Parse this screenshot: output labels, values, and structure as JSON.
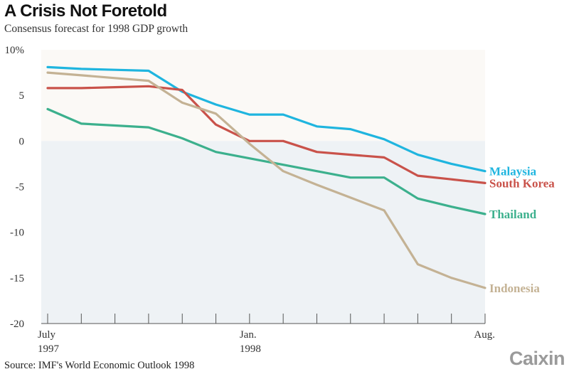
{
  "title": "A Crisis Not Foretold",
  "subtitle": "Consensus forecast for 1998 GDP growth",
  "source": "Source: IMF's World Economic Outlook 1998",
  "logo": "Caixin",
  "chart_data": {
    "type": "line",
    "title": "A Crisis Not Foretold",
    "subtitle": "Consensus forecast for 1998 GDP growth",
    "ylim": [
      -20,
      10
    ],
    "yticks": [
      10,
      5,
      0,
      -5,
      -10,
      -15,
      -20
    ],
    "ytick_labels": [
      "10%",
      "5",
      "0",
      "-5",
      "-10",
      "-15",
      "-20"
    ],
    "x_month_index": [
      0,
      1,
      2,
      3,
      4,
      5,
      6,
      7,
      8,
      9,
      10,
      11,
      12,
      13
    ],
    "xtick_labels": [
      {
        "x": 0,
        "line1": "July",
        "line2": "1997"
      },
      {
        "x": 6,
        "line1": "Jan.",
        "line2": "1998"
      },
      {
        "x": 13,
        "line1": "Aug.",
        "line2": ""
      }
    ],
    "grid": false,
    "legend": "direct labels at line ends",
    "colors": {
      "positive_band": "#fbf9f6",
      "negative_band": "#eef2f5",
      "axis": "#555555"
    },
    "series": [
      {
        "name": "Malaysia",
        "color": "#1fb5df",
        "x": [
          0,
          1,
          2,
          3,
          4,
          5,
          6,
          7,
          8,
          9,
          10,
          11,
          12,
          13
        ],
        "values": [
          8.1,
          7.9,
          7.8,
          7.7,
          5.4,
          4.0,
          2.9,
          2.9,
          1.6,
          1.3,
          0.2,
          -1.5,
          -2.5,
          -3.3
        ]
      },
      {
        "name": "South Korea",
        "color": "#c9524a",
        "x": [
          0,
          1,
          2,
          3,
          4,
          5,
          6,
          7,
          8,
          9,
          10,
          11,
          12,
          13
        ],
        "values": [
          5.8,
          5.8,
          5.9,
          6.0,
          5.6,
          1.8,
          0.0,
          0.0,
          -1.2,
          -1.5,
          -1.8,
          -3.8,
          -4.2,
          -4.6
        ]
      },
      {
        "name": "Thailand",
        "color": "#3cb08d",
        "x": [
          0,
          1,
          2,
          3,
          4,
          5,
          6,
          7,
          8,
          9,
          10,
          11,
          12,
          13
        ],
        "values": [
          3.5,
          1.9,
          1.7,
          1.5,
          0.3,
          -1.2,
          -1.9,
          -2.6,
          -3.3,
          -4.0,
          -4.0,
          -6.3,
          -7.2,
          -8.0
        ]
      },
      {
        "name": "Indonesia",
        "color": "#c4b294",
        "x": [
          0,
          1,
          2,
          3,
          4,
          5,
          6,
          7,
          8,
          9,
          10,
          11,
          12,
          13
        ],
        "values": [
          7.5,
          7.2,
          6.9,
          6.6,
          4.2,
          3.0,
          -0.3,
          -3.3,
          -4.8,
          -6.2,
          -7.6,
          -13.5,
          -15.0,
          -16.1
        ]
      }
    ]
  }
}
